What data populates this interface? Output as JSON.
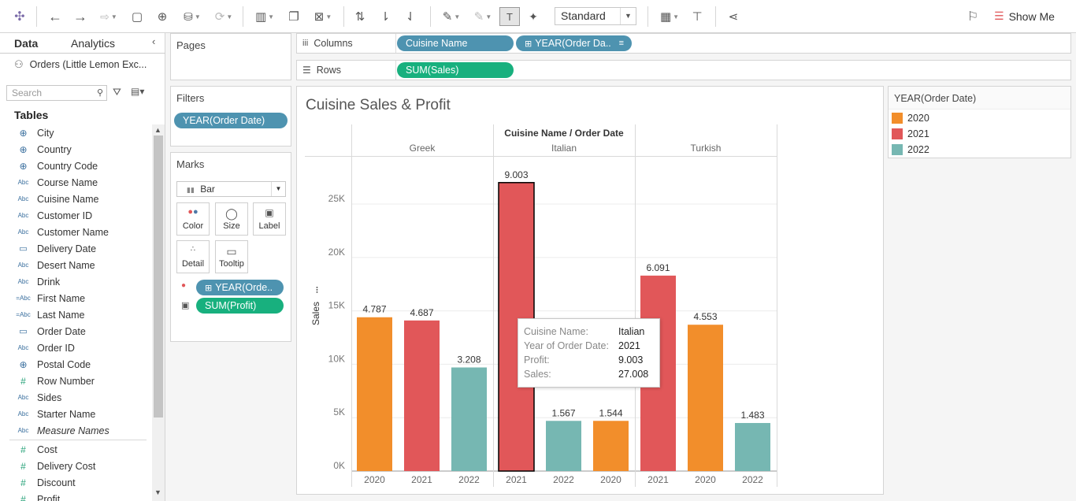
{
  "toolbar": {
    "view_mode": "Standard",
    "show_me": "Show Me",
    "icons": [
      "tableau-logo-icon",
      "undo-icon",
      "redo-icon",
      "replay-icon",
      "save-icon",
      "new-datasource-icon",
      "pause-icon",
      "refresh-icon",
      "new-worksheet-icon",
      "duplicate-icon",
      "clear-icon",
      "swap-icon",
      "sort-asc-icon",
      "sort-desc-icon",
      "highlight-icon",
      "group-icon",
      "label-icon",
      "pin-icon",
      "fit-icon",
      "presentation-icon",
      "share-icon",
      "pen-icon"
    ]
  },
  "data_pane": {
    "tab_data": "Data",
    "tab_analytics": "Analytics",
    "datasource": "Orders (Little Lemon Exc...",
    "search_placeholder": "Search",
    "tables_heading": "Tables",
    "dimensions": [
      {
        "type": "globe",
        "label": "City"
      },
      {
        "type": "globe",
        "label": "Country"
      },
      {
        "type": "globe",
        "label": "Country Code"
      },
      {
        "type": "abc",
        "label": "Course Name"
      },
      {
        "type": "abc",
        "label": "Cuisine Name"
      },
      {
        "type": "abc",
        "label": "Customer ID"
      },
      {
        "type": "abc",
        "label": "Customer Name"
      },
      {
        "type": "cal",
        "label": "Delivery Date"
      },
      {
        "type": "abc",
        "label": "Desert Name"
      },
      {
        "type": "abc",
        "label": "Drink"
      },
      {
        "type": "eabc",
        "label": "First Name"
      },
      {
        "type": "eabc",
        "label": "Last Name"
      },
      {
        "type": "cal",
        "label": "Order Date"
      },
      {
        "type": "abc",
        "label": "Order ID"
      },
      {
        "type": "globe",
        "label": "Postal Code"
      },
      {
        "type": "num",
        "label": "Row Number"
      },
      {
        "type": "abc",
        "label": "Sides"
      },
      {
        "type": "abc",
        "label": "Starter Name"
      },
      {
        "type": "abc",
        "label": "Measure Names",
        "italic": true
      }
    ],
    "measures": [
      {
        "type": "num",
        "label": "Cost"
      },
      {
        "type": "num",
        "label": "Delivery Cost"
      },
      {
        "type": "num",
        "label": "Discount"
      },
      {
        "type": "num",
        "label": "Profit"
      }
    ]
  },
  "pages": {
    "title": "Pages"
  },
  "filters": {
    "title": "Filters",
    "pill": "YEAR(Order Date)"
  },
  "marks": {
    "title": "Marks",
    "type": "Bar",
    "buttons": {
      "color": "Color",
      "size": "Size",
      "label": "Label",
      "detail": "Detail",
      "tooltip": "Tooltip"
    },
    "pill_color": "YEAR(Orde..",
    "pill_label": "SUM(Profit)"
  },
  "shelves": {
    "columns_label": "Columns",
    "rows_label": "Rows",
    "columns_pill1": "Cuisine Name",
    "columns_pill2": "YEAR(Order Da..",
    "rows_pill": "SUM(Sales)"
  },
  "legend": {
    "title": "YEAR(Order Date)",
    "items": [
      {
        "label": "2020",
        "color": "#f28e2b"
      },
      {
        "label": "2021",
        "color": "#e15759"
      },
      {
        "label": "2022",
        "color": "#76b7b2"
      }
    ]
  },
  "tooltip": {
    "rows": [
      {
        "key": "Cuisine Name:",
        "value": "Italian"
      },
      {
        "key": "Year of Order Date:",
        "value": "2021"
      },
      {
        "key": "Profit:",
        "value": "9.003"
      },
      {
        "key": "Sales:",
        "value": "27.008"
      }
    ]
  },
  "chart_data": {
    "type": "bar",
    "title": "Cuisine Sales & Profit",
    "header": "Cuisine Name  /  Order Date",
    "ylabel": "Sales",
    "ylim": [
      0,
      29500
    ],
    "yticks": [
      0,
      5000,
      10000,
      15000,
      20000,
      25000
    ],
    "ytick_labels": [
      "0K",
      "5K",
      "10K",
      "15K",
      "20K",
      "25K"
    ],
    "grid": true,
    "colors": {
      "2020": "#f28e2b",
      "2021": "#e15759",
      "2022": "#76b7b2"
    },
    "panels": [
      {
        "name": "Greek",
        "bars": [
          {
            "year": "2020",
            "sales": 14400,
            "label": "4.787"
          },
          {
            "year": "2021",
            "sales": 14100,
            "label": "4.687"
          },
          {
            "year": "2022",
            "sales": 9700,
            "label": "3.208"
          }
        ]
      },
      {
        "name": "Italian",
        "bars": [
          {
            "year": "2021",
            "sales": 27008,
            "label": "9.003",
            "selected": true
          },
          {
            "year": "2022",
            "sales": 4700,
            "label": "1.567"
          },
          {
            "year": "2020",
            "sales": 4700,
            "label": "1.544"
          }
        ]
      },
      {
        "name": "Turkish",
        "bars": [
          {
            "year": "2021",
            "sales": 18300,
            "label": "6.091"
          },
          {
            "year": "2020",
            "sales": 13700,
            "label": "4.553"
          },
          {
            "year": "2022",
            "sales": 4500,
            "label": "1.483"
          }
        ]
      }
    ]
  }
}
